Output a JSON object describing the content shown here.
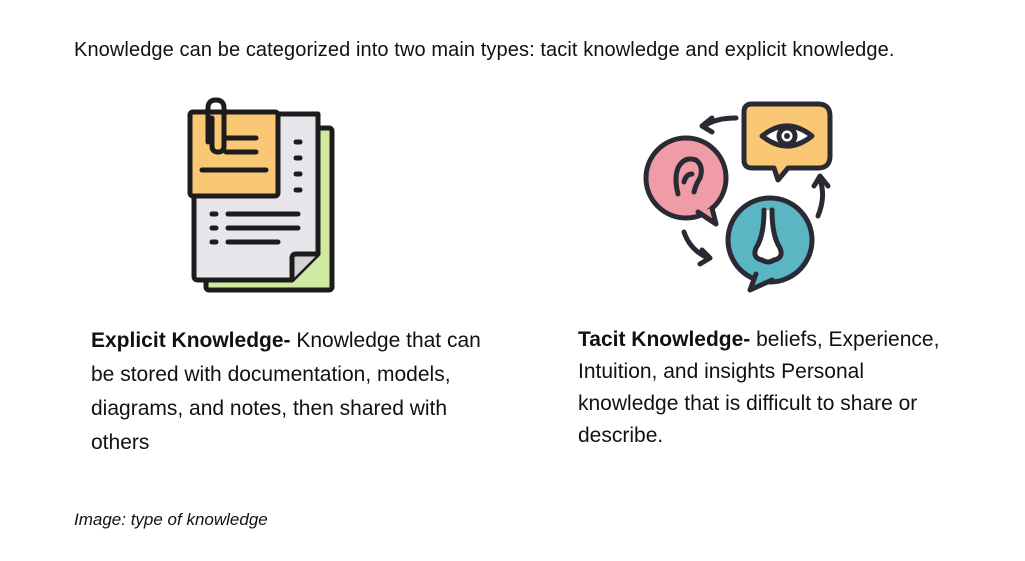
{
  "heading": "Knowledge can be categorized into two main types: tacit knowledge and explicit knowledge.",
  "explicit": {
    "title": "Explicit Knowledge-",
    "text": " Knowledge that can be stored with documentation, models, diagrams, and notes, then shared with others",
    "icon": "document-with-sticky-note-icon",
    "colors": {
      "sticky": "#FAC774",
      "paper": "#E8E6EA",
      "back": "#CFEAA0"
    }
  },
  "tacit": {
    "title": "Tacit Knowledge-",
    "text": " beliefs, Experience, Intuition, and insights Personal knowledge that is difficult to share or describe.",
    "icon": "senses-speech-bubbles-icon",
    "colors": {
      "ear": "#F09CA8",
      "eye": "#FAC774",
      "nose": "#5BB6C4"
    }
  },
  "caption": "Image: type of knowledge"
}
